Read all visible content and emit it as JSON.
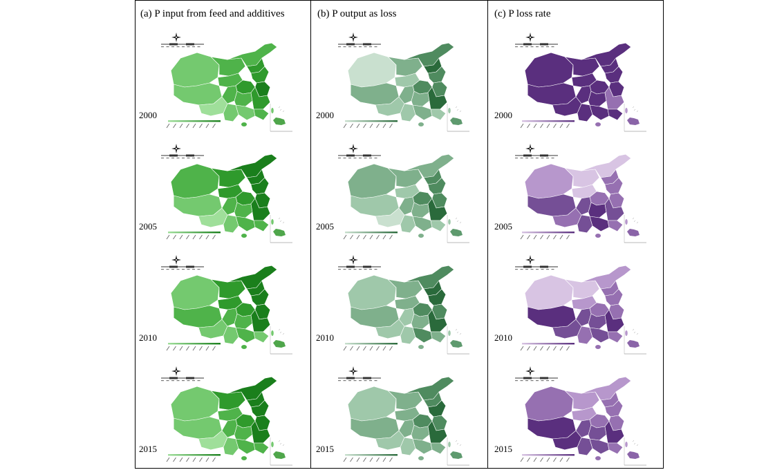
{
  "panels": [
    {
      "label": "(a) P input from feed and additives",
      "palette": [
        "#9fdf9a",
        "#74c96f",
        "#4fb34a",
        "#2f9a2c",
        "#1a7f1c"
      ],
      "inset_color": "#4fa64b"
    },
    {
      "label": "(b) P output as loss",
      "palette": [
        "#c9e0cf",
        "#9fc8aa",
        "#7fb08c",
        "#4f8b5f",
        "#2a6a3b"
      ],
      "inset_color": "#5e9a6e"
    },
    {
      "label": "(c) P loss rate",
      "palette": [
        "#d8c4e3",
        "#b797cc",
        "#9670b1",
        "#754f96",
        "#5a2f7e"
      ],
      "inset_color": "#8a64a8"
    }
  ],
  "years": [
    "2000",
    "2005",
    "2010",
    "2015"
  ],
  "levels": [
    [
      [
        1,
        2,
        2,
        3,
        3,
        2,
        3,
        4,
        1,
        0,
        2,
        2,
        3,
        1,
        1,
        2
      ],
      [
        0,
        2,
        3,
        4,
        3,
        1,
        3,
        3,
        2,
        1,
        2,
        2,
        4,
        1,
        2,
        1
      ],
      [
        4,
        4,
        4,
        4,
        4,
        4,
        4,
        4,
        4,
        4,
        4,
        4,
        2,
        4,
        4,
        4
      ]
    ],
    [
      [
        2,
        3,
        4,
        4,
        4,
        3,
        3,
        4,
        1,
        0,
        2,
        2,
        4,
        1,
        2,
        2
      ],
      [
        2,
        2,
        2,
        3,
        3,
        1,
        3,
        3,
        1,
        0,
        2,
        2,
        4,
        1,
        2,
        1
      ],
      [
        1,
        0,
        0,
        2,
        2,
        0,
        2,
        2,
        3,
        2,
        3,
        4,
        3,
        3,
        4,
        2
      ]
    ],
    [
      [
        1,
        3,
        4,
        4,
        4,
        3,
        3,
        4,
        2,
        1,
        2,
        2,
        4,
        1,
        2,
        1
      ],
      [
        1,
        2,
        3,
        4,
        4,
        2,
        3,
        3,
        2,
        1,
        1,
        2,
        4,
        1,
        3,
        2
      ],
      [
        0,
        0,
        1,
        2,
        2,
        1,
        2,
        2,
        4,
        3,
        3,
        3,
        4,
        2,
        3,
        2
      ]
    ],
    [
      [
        1,
        3,
        4,
        4,
        4,
        2,
        3,
        4,
        1,
        0,
        2,
        2,
        4,
        1,
        2,
        2
      ],
      [
        1,
        2,
        3,
        3,
        4,
        2,
        3,
        3,
        2,
        1,
        2,
        2,
        4,
        1,
        2,
        2
      ],
      [
        2,
        1,
        1,
        2,
        2,
        1,
        2,
        2,
        4,
        4,
        3,
        3,
        4,
        3,
        3,
        2
      ]
    ]
  ]
}
